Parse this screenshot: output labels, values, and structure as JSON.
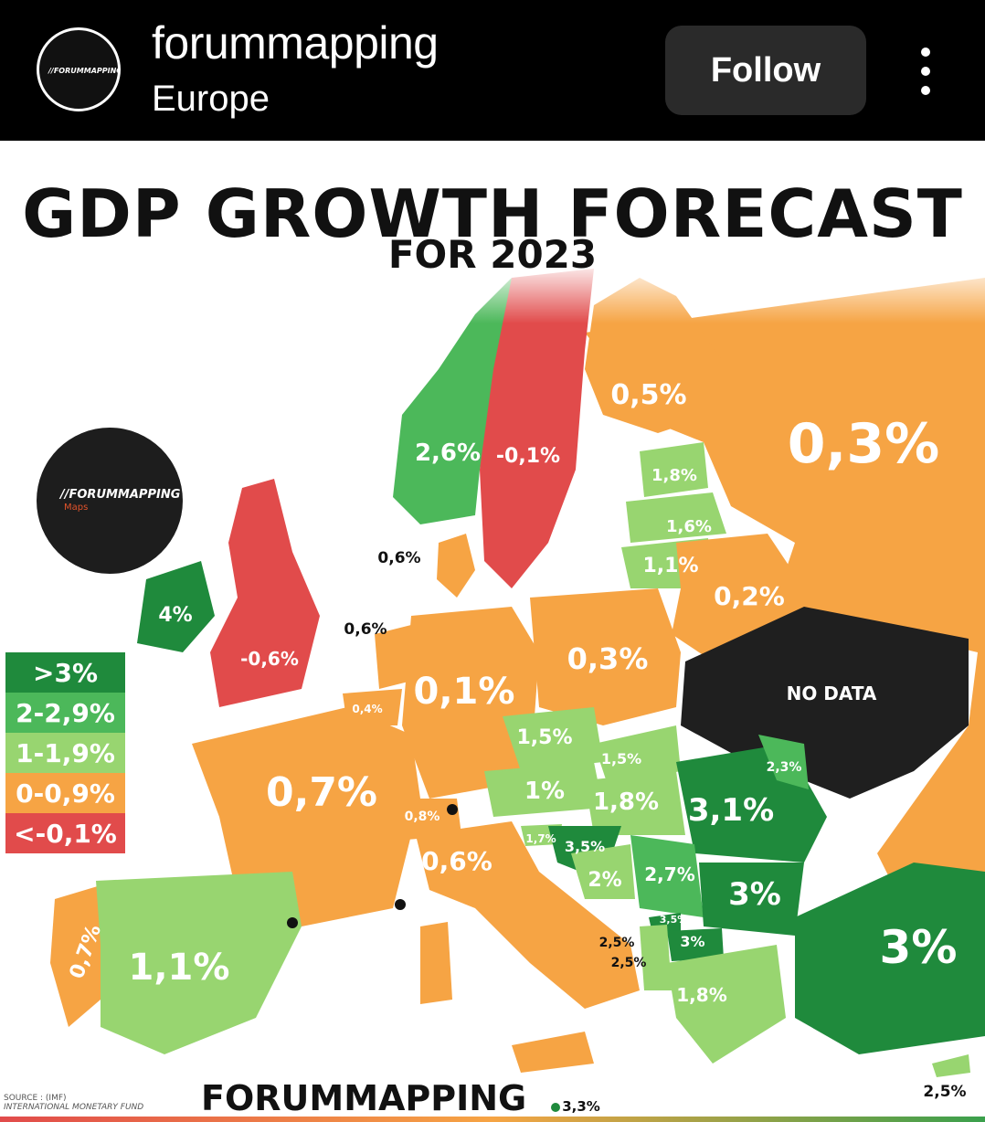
{
  "header": {
    "account_name": "forummapping",
    "subtitle": "Europe",
    "follow_label": "Follow",
    "avatar_text": "//FORUMMAPPING",
    "avatar_sub": "Maps"
  },
  "poster": {
    "title": "GDP GROWTH FORECAST",
    "subtitle": "FOR 2023",
    "logo_text": "//FORUMMAPPING",
    "logo_sub": "Maps",
    "brand": "FORUMMAPPING",
    "source_line1": "SOURCE : (IMF)",
    "source_line2": "INTERNATIONAL MONETARY FUND",
    "no_data": "NO DATA"
  },
  "legend": [
    {
      "label": ">3%",
      "color": "#1f8a3c"
    },
    {
      "label": "2-2,9%",
      "color": "#4cb85a"
    },
    {
      "label": "1-1,9%",
      "color": "#98d570"
    },
    {
      "label": "0-0,9%",
      "color": "#f6a444"
    },
    {
      "label": "<-0,1%",
      "color": "#e14b4b"
    }
  ],
  "countries": {
    "norway": "2,6%",
    "sweden": "-0,1%",
    "finland": "0,5%",
    "russia": "0,3%",
    "estonia": "1,8%",
    "latvia": "1,6%",
    "lithuania": "1,1%",
    "belarus": "0,2%",
    "denmark": "0,6%",
    "ireland": "4%",
    "uk": "-0,6%",
    "netherlands": "0,6%",
    "belgium": "0,4%",
    "germany": "0,1%",
    "poland": "0,3%",
    "czechia": "1,5%",
    "slovakia": "1,5%",
    "austria": "1%",
    "hungary": "1,8%",
    "moldova": "2,3%",
    "romania": "3,1%",
    "france": "0,7%",
    "switzerland": "0,8%",
    "italy": "0,6%",
    "slovenia": "1,7%",
    "croatia": "3,5%",
    "bosnia": "2%",
    "serbia": "2,7%",
    "bulgaria": "3%",
    "montenegro": "2,5%",
    "albania": "2,5%",
    "kosovo": "3,5%",
    "north_macedonia": "3%",
    "greece": "1,8%",
    "turkey": "3%",
    "portugal": "0,7%",
    "spain": "1,1%",
    "malta": "3,3%",
    "cyprus": "2,5%"
  }
}
